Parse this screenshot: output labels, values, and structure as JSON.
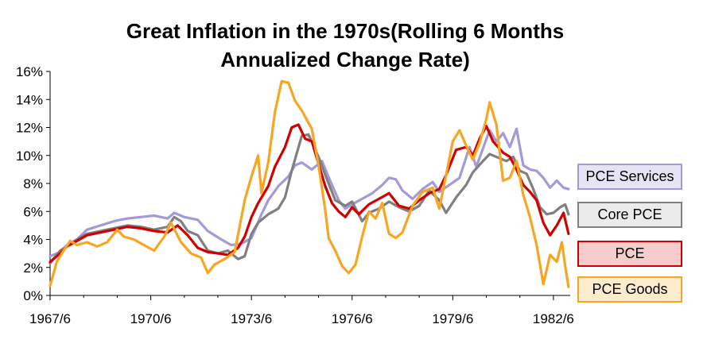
{
  "chart_data": {
    "type": "line",
    "title": [
      "Great Inflation in the 1970s(Rolling 6 Months",
      "Annualized Change Rate)"
    ],
    "xlabel": "",
    "ylabel": "",
    "x_range": [
      1967.5,
      1983.0
    ],
    "ylim": [
      0,
      16
    ],
    "x_ticks": [
      {
        "value": 1967.5,
        "label": "1967/6"
      },
      {
        "value": 1970.5,
        "label": "1970/6"
      },
      {
        "value": 1973.5,
        "label": "1973/6"
      },
      {
        "value": 1976.5,
        "label": "1976/6"
      },
      {
        "value": 1979.5,
        "label": "1979/6"
      },
      {
        "value": 1982.5,
        "label": "1982/6"
      }
    ],
    "y_ticks": [
      {
        "value": 0,
        "label": "0%"
      },
      {
        "value": 2,
        "label": "2%"
      },
      {
        "value": 4,
        "label": "4%"
      },
      {
        "value": 6,
        "label": "6%"
      },
      {
        "value": 8,
        "label": "8%"
      },
      {
        "value": 10,
        "label": "10%"
      },
      {
        "value": 12,
        "label": "12%"
      },
      {
        "value": 14,
        "label": "14%"
      },
      {
        "value": 16,
        "label": "16%"
      }
    ],
    "series": [
      {
        "name": "PCE Services",
        "color": "#a49ad8",
        "legend_fill": "#e6e3f5",
        "points": [
          [
            1967.5,
            2.8
          ],
          [
            1967.8,
            3.1
          ],
          [
            1968.0,
            3.6
          ],
          [
            1968.3,
            4.0
          ],
          [
            1968.6,
            4.7
          ],
          [
            1969.0,
            5.0
          ],
          [
            1969.4,
            5.3
          ],
          [
            1969.8,
            5.5
          ],
          [
            1970.2,
            5.6
          ],
          [
            1970.6,
            5.7
          ],
          [
            1971.0,
            5.5
          ],
          [
            1971.2,
            5.9
          ],
          [
            1971.5,
            5.6
          ],
          [
            1971.9,
            5.4
          ],
          [
            1972.2,
            4.6
          ],
          [
            1972.6,
            4.0
          ],
          [
            1972.9,
            3.6
          ],
          [
            1973.2,
            3.7
          ],
          [
            1973.5,
            4.1
          ],
          [
            1973.8,
            5.8
          ],
          [
            1974.0,
            6.8
          ],
          [
            1974.3,
            7.8
          ],
          [
            1974.6,
            8.5
          ],
          [
            1974.8,
            9.3
          ],
          [
            1975.0,
            9.5
          ],
          [
            1975.3,
            9.0
          ],
          [
            1975.6,
            9.6
          ],
          [
            1975.9,
            7.9
          ],
          [
            1976.1,
            6.8
          ],
          [
            1976.3,
            6.2
          ],
          [
            1976.5,
            6.5
          ],
          [
            1976.8,
            6.9
          ],
          [
            1977.1,
            7.3
          ],
          [
            1977.4,
            7.9
          ],
          [
            1977.6,
            8.4
          ],
          [
            1977.8,
            8.3
          ],
          [
            1978.0,
            7.5
          ],
          [
            1978.3,
            6.9
          ],
          [
            1978.6,
            7.6
          ],
          [
            1978.9,
            8.1
          ],
          [
            1979.1,
            7.4
          ],
          [
            1979.4,
            7.9
          ],
          [
            1979.7,
            8.4
          ],
          [
            1980.0,
            10.6
          ],
          [
            1980.2,
            9.2
          ],
          [
            1980.4,
            10.5
          ],
          [
            1980.6,
            11.8
          ],
          [
            1980.8,
            11.0
          ],
          [
            1981.0,
            11.6
          ],
          [
            1981.2,
            10.6
          ],
          [
            1981.4,
            11.9
          ],
          [
            1981.6,
            9.3
          ],
          [
            1981.8,
            9.0
          ],
          [
            1982.0,
            8.9
          ],
          [
            1982.2,
            8.4
          ],
          [
            1982.4,
            7.7
          ],
          [
            1982.6,
            8.2
          ],
          [
            1982.8,
            7.7
          ],
          [
            1982.95,
            7.6
          ]
        ]
      },
      {
        "name": "Core PCE",
        "color": "#808080",
        "legend_fill": "#ebebeb",
        "points": [
          [
            1967.5,
            2.3
          ],
          [
            1967.8,
            3.2
          ],
          [
            1968.0,
            3.5
          ],
          [
            1968.3,
            4.0
          ],
          [
            1968.6,
            4.4
          ],
          [
            1969.0,
            4.6
          ],
          [
            1969.4,
            4.8
          ],
          [
            1969.8,
            5.0
          ],
          [
            1970.2,
            4.9
          ],
          [
            1970.6,
            4.7
          ],
          [
            1971.0,
            4.9
          ],
          [
            1971.2,
            5.6
          ],
          [
            1971.4,
            5.3
          ],
          [
            1971.6,
            4.6
          ],
          [
            1971.9,
            4.3
          ],
          [
            1972.2,
            3.2
          ],
          [
            1972.5,
            3.0
          ],
          [
            1972.8,
            3.2
          ],
          [
            1973.1,
            2.6
          ],
          [
            1973.3,
            2.8
          ],
          [
            1973.5,
            4.4
          ],
          [
            1973.7,
            5.2
          ],
          [
            1974.0,
            5.8
          ],
          [
            1974.3,
            6.2
          ],
          [
            1974.5,
            7.0
          ],
          [
            1974.7,
            8.9
          ],
          [
            1975.0,
            11.4
          ],
          [
            1975.2,
            11.5
          ],
          [
            1975.5,
            9.9
          ],
          [
            1975.8,
            8.0
          ],
          [
            1976.0,
            6.8
          ],
          [
            1976.3,
            6.4
          ],
          [
            1976.5,
            6.7
          ],
          [
            1976.8,
            5.3
          ],
          [
            1977.0,
            5.9
          ],
          [
            1977.3,
            6.2
          ],
          [
            1977.6,
            6.7
          ],
          [
            1977.9,
            6.3
          ],
          [
            1978.2,
            6.0
          ],
          [
            1978.5,
            6.4
          ],
          [
            1978.8,
            7.5
          ],
          [
            1979.1,
            6.8
          ],
          [
            1979.3,
            5.9
          ],
          [
            1979.6,
            7.0
          ],
          [
            1979.9,
            7.9
          ],
          [
            1980.1,
            8.8
          ],
          [
            1980.4,
            9.6
          ],
          [
            1980.6,
            10.1
          ],
          [
            1980.9,
            9.8
          ],
          [
            1981.1,
            9.6
          ],
          [
            1981.3,
            9.9
          ],
          [
            1981.5,
            8.9
          ],
          [
            1981.7,
            8.7
          ],
          [
            1981.9,
            7.6
          ],
          [
            1982.1,
            6.3
          ],
          [
            1982.3,
            5.8
          ],
          [
            1982.5,
            5.9
          ],
          [
            1982.7,
            6.3
          ],
          [
            1982.85,
            6.5
          ],
          [
            1982.95,
            5.8
          ]
        ]
      },
      {
        "name": "PCE",
        "color": "#d00000",
        "legend_fill": "#f6cccc",
        "points": [
          [
            1967.5,
            2.4
          ],
          [
            1967.8,
            3.0
          ],
          [
            1968.0,
            3.5
          ],
          [
            1968.3,
            3.9
          ],
          [
            1968.6,
            4.3
          ],
          [
            1969.0,
            4.5
          ],
          [
            1969.4,
            4.7
          ],
          [
            1969.8,
            4.9
          ],
          [
            1970.2,
            4.8
          ],
          [
            1970.6,
            4.6
          ],
          [
            1971.0,
            4.5
          ],
          [
            1971.3,
            5.0
          ],
          [
            1971.6,
            4.3
          ],
          [
            1971.9,
            3.4
          ],
          [
            1972.2,
            3.1
          ],
          [
            1972.5,
            3.0
          ],
          [
            1972.8,
            2.9
          ],
          [
            1973.1,
            3.4
          ],
          [
            1973.3,
            4.2
          ],
          [
            1973.5,
            5.6
          ],
          [
            1973.7,
            6.6
          ],
          [
            1974.0,
            7.8
          ],
          [
            1974.2,
            9.2
          ],
          [
            1974.5,
            10.6
          ],
          [
            1974.7,
            12.0
          ],
          [
            1974.9,
            12.2
          ],
          [
            1975.1,
            11.2
          ],
          [
            1975.3,
            11.0
          ],
          [
            1975.5,
            9.4
          ],
          [
            1975.7,
            7.8
          ],
          [
            1975.9,
            6.6
          ],
          [
            1976.1,
            6.0
          ],
          [
            1976.3,
            5.6
          ],
          [
            1976.5,
            6.3
          ],
          [
            1976.7,
            5.8
          ],
          [
            1977.0,
            6.5
          ],
          [
            1977.3,
            6.9
          ],
          [
            1977.6,
            7.3
          ],
          [
            1977.9,
            6.4
          ],
          [
            1978.2,
            6.2
          ],
          [
            1978.5,
            6.8
          ],
          [
            1978.8,
            7.3
          ],
          [
            1979.1,
            7.6
          ],
          [
            1979.3,
            8.6
          ],
          [
            1979.6,
            10.4
          ],
          [
            1979.9,
            10.6
          ],
          [
            1980.1,
            10.0
          ],
          [
            1980.3,
            11.2
          ],
          [
            1980.5,
            12.1
          ],
          [
            1980.7,
            11.0
          ],
          [
            1981.0,
            10.2
          ],
          [
            1981.2,
            9.9
          ],
          [
            1981.4,
            9.0
          ],
          [
            1981.6,
            7.9
          ],
          [
            1981.8,
            7.4
          ],
          [
            1982.0,
            6.8
          ],
          [
            1982.2,
            5.2
          ],
          [
            1982.4,
            4.3
          ],
          [
            1982.6,
            5.0
          ],
          [
            1982.8,
            5.9
          ],
          [
            1982.95,
            4.4
          ]
        ]
      },
      {
        "name": "PCE Goods",
        "color": "#f6a623",
        "legend_fill": "#fdeccc",
        "points": [
          [
            1967.5,
            0.7
          ],
          [
            1967.7,
            2.4
          ],
          [
            1967.9,
            3.2
          ],
          [
            1968.1,
            3.9
          ],
          [
            1968.3,
            3.6
          ],
          [
            1968.6,
            3.8
          ],
          [
            1968.9,
            3.5
          ],
          [
            1969.2,
            3.8
          ],
          [
            1969.5,
            4.7
          ],
          [
            1969.7,
            4.2
          ],
          [
            1970.0,
            4.0
          ],
          [
            1970.3,
            3.6
          ],
          [
            1970.6,
            3.2
          ],
          [
            1970.9,
            4.2
          ],
          [
            1971.1,
            5.2
          ],
          [
            1971.4,
            3.8
          ],
          [
            1971.7,
            3.0
          ],
          [
            1972.0,
            2.7
          ],
          [
            1972.2,
            1.6
          ],
          [
            1972.4,
            2.2
          ],
          [
            1972.7,
            2.6
          ],
          [
            1973.0,
            3.1
          ],
          [
            1973.3,
            6.8
          ],
          [
            1973.5,
            8.5
          ],
          [
            1973.7,
            10.0
          ],
          [
            1973.8,
            7.3
          ],
          [
            1974.0,
            9.5
          ],
          [
            1974.2,
            13.1
          ],
          [
            1974.4,
            15.3
          ],
          [
            1974.6,
            15.2
          ],
          [
            1974.8,
            13.9
          ],
          [
            1975.0,
            13.2
          ],
          [
            1975.3,
            11.9
          ],
          [
            1975.5,
            9.3
          ],
          [
            1975.7,
            6.1
          ],
          [
            1975.8,
            4.1
          ],
          [
            1976.0,
            3.2
          ],
          [
            1976.2,
            2.1
          ],
          [
            1976.4,
            1.6
          ],
          [
            1976.6,
            2.2
          ],
          [
            1976.8,
            4.2
          ],
          [
            1977.0,
            6.0
          ],
          [
            1977.2,
            5.5
          ],
          [
            1977.4,
            6.6
          ],
          [
            1977.6,
            4.4
          ],
          [
            1977.8,
            4.1
          ],
          [
            1978.0,
            4.5
          ],
          [
            1978.3,
            6.4
          ],
          [
            1978.6,
            7.4
          ],
          [
            1978.9,
            7.7
          ],
          [
            1979.1,
            6.2
          ],
          [
            1979.3,
            8.6
          ],
          [
            1979.5,
            11.0
          ],
          [
            1979.7,
            11.8
          ],
          [
            1979.9,
            10.7
          ],
          [
            1980.1,
            9.7
          ],
          [
            1980.3,
            10.9
          ],
          [
            1980.5,
            12.6
          ],
          [
            1980.6,
            13.8
          ],
          [
            1980.8,
            12.2
          ],
          [
            1981.0,
            8.2
          ],
          [
            1981.2,
            8.4
          ],
          [
            1981.4,
            9.6
          ],
          [
            1981.6,
            7.2
          ],
          [
            1981.8,
            5.6
          ],
          [
            1982.0,
            3.6
          ],
          [
            1982.2,
            0.8
          ],
          [
            1982.4,
            2.9
          ],
          [
            1982.6,
            2.4
          ],
          [
            1982.75,
            3.8
          ],
          [
            1982.85,
            2.1
          ],
          [
            1982.95,
            0.6
          ]
        ]
      }
    ],
    "legend": {
      "placement": "right",
      "order": [
        "PCE Services",
        "Core PCE",
        "PCE",
        "PCE Goods"
      ]
    },
    "grid": false
  }
}
